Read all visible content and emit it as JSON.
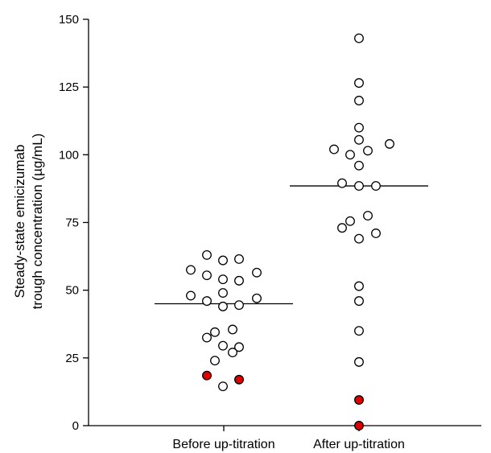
{
  "chart_data": {
    "type": "scatter",
    "title": "",
    "xlabel": "",
    "ylabel_lines": [
      "Steady-state emicizumab",
      "trough concentration (µg/mL)"
    ],
    "ylim": [
      0,
      150
    ],
    "yticks": [
      0,
      25,
      50,
      75,
      100,
      125,
      150
    ],
    "categories": [
      "Before up-titration",
      "After up-titration"
    ],
    "grid": false,
    "legend": "none",
    "colors": {
      "open_marker_fill": "#ffffff",
      "highlight_marker_fill": "#e00000",
      "marker_stroke": "#000000",
      "axis": "#000000",
      "median_line": "#000000"
    },
    "series": [
      {
        "category": "Before up-titration",
        "median": 45,
        "points": [
          {
            "dx": 0,
            "y": 63,
            "highlight": false
          },
          {
            "dx": 0,
            "y": 61,
            "highlight": false
          },
          {
            "dx": 0,
            "y": 61.5,
            "highlight": false
          },
          {
            "dx": 0,
            "y": 57.5,
            "highlight": false
          },
          {
            "dx": 0,
            "y": 56.5,
            "highlight": false
          },
          {
            "dx": 0,
            "y": 55.5,
            "highlight": false
          },
          {
            "dx": 0,
            "y": 54,
            "highlight": false
          },
          {
            "dx": 0,
            "y": 53.5,
            "highlight": false
          },
          {
            "dx": 0,
            "y": 49,
            "highlight": false
          },
          {
            "dx": 0,
            "y": 48,
            "highlight": false
          },
          {
            "dx": 0,
            "y": 47,
            "highlight": false
          },
          {
            "dx": 0,
            "y": 46,
            "highlight": false
          },
          {
            "dx": 0,
            "y": 44,
            "highlight": false
          },
          {
            "dx": 0,
            "y": 44.5,
            "highlight": false
          },
          {
            "dx": 0,
            "y": 35.5,
            "highlight": false
          },
          {
            "dx": 0,
            "y": 34.5,
            "highlight": false
          },
          {
            "dx": 0,
            "y": 32.5,
            "highlight": false
          },
          {
            "dx": 0,
            "y": 29.5,
            "highlight": false
          },
          {
            "dx": 0,
            "y": 29,
            "highlight": false
          },
          {
            "dx": 0,
            "y": 27,
            "highlight": false
          },
          {
            "dx": 0,
            "y": 24,
            "highlight": false
          },
          {
            "dx": 0,
            "y": 18.5,
            "highlight": true
          },
          {
            "dx": 0,
            "y": 17,
            "highlight": true
          },
          {
            "dx": 0,
            "y": 14.5,
            "highlight": false
          }
        ]
      },
      {
        "category": "After up-titration",
        "median": 88.5,
        "points": [
          {
            "dx": 0,
            "y": 143,
            "highlight": false
          },
          {
            "dx": 0,
            "y": 126.5,
            "highlight": false
          },
          {
            "dx": 0,
            "y": 120,
            "highlight": false
          },
          {
            "dx": 0,
            "y": 110,
            "highlight": false
          },
          {
            "dx": 0,
            "y": 105.5,
            "highlight": false
          },
          {
            "dx": 0,
            "y": 104,
            "highlight": false
          },
          {
            "dx": 0,
            "y": 102,
            "highlight": false
          },
          {
            "dx": 0,
            "y": 101.5,
            "highlight": false
          },
          {
            "dx": 0,
            "y": 100,
            "highlight": false
          },
          {
            "dx": 0,
            "y": 96,
            "highlight": false
          },
          {
            "dx": 0,
            "y": 89.5,
            "highlight": false
          },
          {
            "dx": 0,
            "y": 88.5,
            "highlight": false
          },
          {
            "dx": 0,
            "y": 88.5,
            "highlight": false
          },
          {
            "dx": 0,
            "y": 77.5,
            "highlight": false
          },
          {
            "dx": 0,
            "y": 75.5,
            "highlight": false
          },
          {
            "dx": 0,
            "y": 73,
            "highlight": false
          },
          {
            "dx": 0,
            "y": 71,
            "highlight": false
          },
          {
            "dx": 0,
            "y": 69,
            "highlight": false
          },
          {
            "dx": 0,
            "y": 51.5,
            "highlight": false
          },
          {
            "dx": 0,
            "y": 46,
            "highlight": false
          },
          {
            "dx": 0,
            "y": 35,
            "highlight": false
          },
          {
            "dx": 0,
            "y": 23.5,
            "highlight": false
          },
          {
            "dx": 0,
            "y": 9.5,
            "highlight": true
          },
          {
            "dx": 0,
            "y": 0,
            "highlight": true
          }
        ]
      }
    ]
  }
}
